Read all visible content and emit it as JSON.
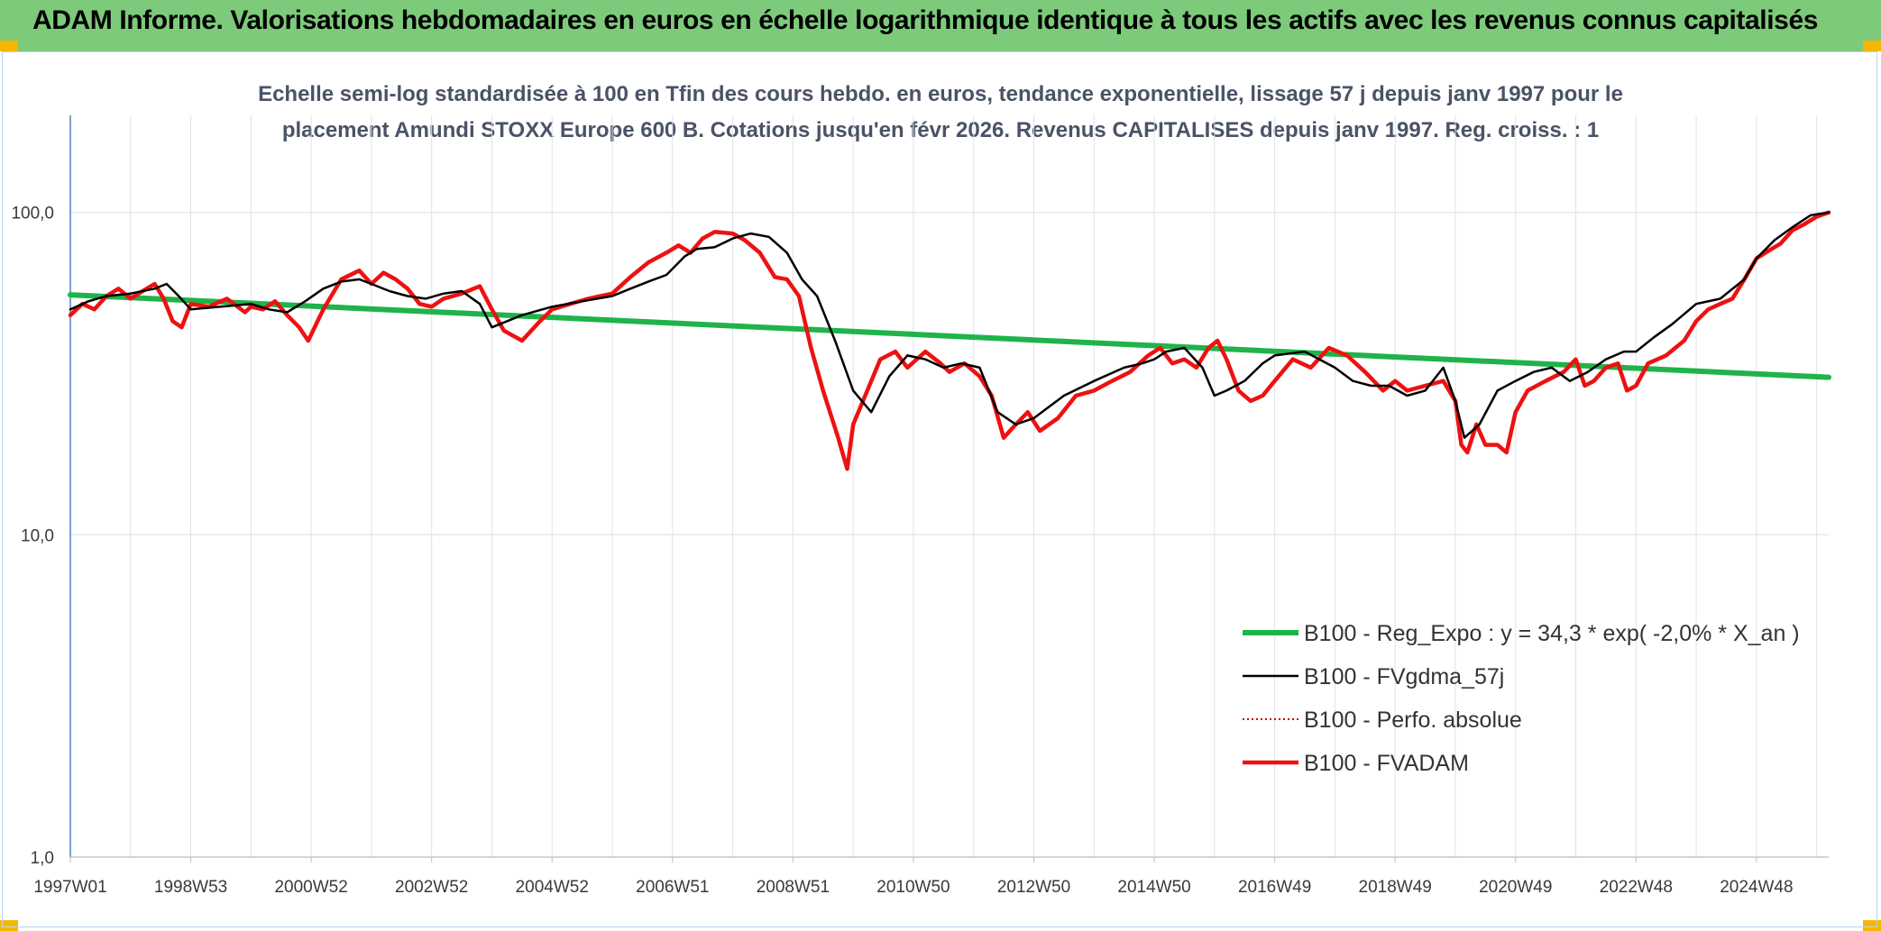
{
  "header": {
    "title": "ADAM Informe. Valorisations hebdomadaires en euros en échelle logarithmique identique à tous les actifs avec les revenus connus capitalisés"
  },
  "colors": {
    "banner": "#7dca7b",
    "corner": "#f5b700",
    "reg_expo": "#1fb34a",
    "fvgdma": "#000000",
    "perfo": "#c00000",
    "fvadam": "#ee1111",
    "grid": "#dde3ea"
  },
  "chart_data": {
    "type": "line",
    "subtitle_line1": "Echelle semi-log standardisée à 100 en Tfin des cours hebdo. en euros, tendance exponentielle, lissage 57 j depuis janv 1997 pour le",
    "subtitle_line2": "placement Amundi STOXX Europe 600 B. Cotations jusqu'en févr 2026. Revenus CAPITALISES depuis janv 1997. Reg. croiss. : 1",
    "y_scale": "log",
    "ylim": [
      1,
      200
    ],
    "xlim": [
      1997.0,
      2026.2
    ],
    "y_ticks": [
      {
        "value": 1,
        "label": "1,0"
      },
      {
        "value": 10,
        "label": "10,0"
      },
      {
        "value": 100,
        "label": "100,0"
      }
    ],
    "x_ticks": [
      {
        "value": 1997.0,
        "label": "1997W01"
      },
      {
        "value": 1999.0,
        "label": "1998W53"
      },
      {
        "value": 2001.0,
        "label": "2000W52"
      },
      {
        "value": 2003.0,
        "label": "2002W52"
      },
      {
        "value": 2005.0,
        "label": "2004W52"
      },
      {
        "value": 2007.0,
        "label": "2006W51"
      },
      {
        "value": 2009.0,
        "label": "2008W51"
      },
      {
        "value": 2011.0,
        "label": "2010W50"
      },
      {
        "value": 2013.0,
        "label": "2012W50"
      },
      {
        "value": 2015.0,
        "label": "2014W50"
      },
      {
        "value": 2017.0,
        "label": "2016W49"
      },
      {
        "value": 2019.0,
        "label": "2018W49"
      },
      {
        "value": 2021.0,
        "label": "2020W49"
      },
      {
        "value": 2023.0,
        "label": "2022W48"
      },
      {
        "value": 2025.0,
        "label": "2024W48"
      }
    ],
    "grid": true,
    "legend_position": "bottom-right",
    "series": [
      {
        "key": "reg_expo",
        "name": "B100 - Reg_Expo : y = 34,3 * exp( -2,0% *  X_an )",
        "style": "solid-thick",
        "x": [
          1997.0,
          2026.2
        ],
        "y": [
          55.5,
          30.8
        ]
      },
      {
        "key": "fvgdma",
        "name": "B100 - FVgdma_57j",
        "style": "solid-thin",
        "x": [
          1997.0,
          1997.3,
          1997.6,
          1998.0,
          1998.4,
          1998.6,
          1998.8,
          1999.0,
          1999.5,
          2000.0,
          2000.3,
          2000.6,
          2000.9,
          2001.2,
          2001.5,
          2001.8,
          2002.0,
          2002.3,
          2002.6,
          2002.9,
          2003.2,
          2003.5,
          2003.8,
          2004.0,
          2004.5,
          2005.0,
          2005.5,
          2006.0,
          2006.3,
          2006.6,
          2006.9,
          2007.2,
          2007.4,
          2007.7,
          2008.0,
          2008.3,
          2008.6,
          2008.9,
          2009.15,
          2009.4,
          2009.7,
          2010.0,
          2010.3,
          2010.6,
          2010.9,
          2011.2,
          2011.5,
          2011.8,
          2012.1,
          2012.4,
          2012.7,
          2013.0,
          2013.5,
          2014.0,
          2014.5,
          2014.8,
          2015.0,
          2015.2,
          2015.5,
          2015.8,
          2016.0,
          2016.2,
          2016.5,
          2016.8,
          2017.0,
          2017.5,
          2018.0,
          2018.3,
          2018.6,
          2018.9,
          2019.2,
          2019.5,
          2019.8,
          2020.0,
          2020.15,
          2020.4,
          2020.7,
          2021.0,
          2021.3,
          2021.6,
          2021.9,
          2022.2,
          2022.5,
          2022.8,
          2023.0,
          2023.3,
          2023.6,
          2024.0,
          2024.4,
          2024.8,
          2025.0,
          2025.3,
          2025.6,
          2025.9,
          2026.2
        ],
        "y": [
          50,
          53,
          55,
          56,
          58,
          60,
          55,
          50,
          51,
          52,
          50,
          49,
          53,
          58,
          61,
          62,
          60,
          57,
          55,
          54,
          56,
          57,
          52,
          44,
          48,
          51,
          53,
          55,
          58,
          61,
          64,
          73,
          77,
          78,
          83,
          86,
          84,
          75,
          62,
          55,
          40,
          28,
          24,
          31,
          36,
          35,
          33,
          34,
          33,
          24,
          22,
          23,
          27,
          30,
          33,
          34,
          35,
          37,
          38,
          33,
          27,
          28,
          30,
          34,
          36,
          37,
          33,
          30,
          29,
          29,
          27,
          28,
          33,
          26,
          20,
          22,
          28,
          30,
          32,
          33,
          30,
          32,
          35,
          37,
          37,
          41,
          45,
          52,
          54,
          62,
          72,
          82,
          90,
          98,
          100
        ]
      },
      {
        "key": "perfo",
        "name": "B100 - Perfo. absolue",
        "style": "dotted",
        "x": [],
        "y": []
      },
      {
        "key": "fvadam",
        "name": "B100 - FVADAM",
        "style": "solid-thick",
        "x": [
          1997.0,
          1997.2,
          1997.4,
          1997.6,
          1997.8,
          1998.0,
          1998.2,
          1998.4,
          1998.55,
          1998.7,
          1998.85,
          1999.0,
          1999.3,
          1999.6,
          1999.9,
          2000.0,
          2000.2,
          2000.4,
          2000.6,
          2000.8,
          2000.95,
          2001.2,
          2001.5,
          2001.8,
          2002.0,
          2002.2,
          2002.4,
          2002.6,
          2002.8,
          2003.0,
          2003.2,
          2003.5,
          2003.8,
          2004.0,
          2004.2,
          2004.5,
          2004.8,
          2005.0,
          2005.3,
          2005.6,
          2006.0,
          2006.3,
          2006.6,
          2006.9,
          2007.1,
          2007.3,
          2007.5,
          2007.7,
          2008.0,
          2008.2,
          2008.45,
          2008.7,
          2008.9,
          2009.1,
          2009.3,
          2009.5,
          2009.75,
          2009.9,
          2010.0,
          2010.2,
          2010.45,
          2010.7,
          2010.9,
          2011.2,
          2011.45,
          2011.6,
          2011.85,
          2012.1,
          2012.3,
          2012.5,
          2012.7,
          2012.9,
          2013.1,
          2013.4,
          2013.7,
          2014.0,
          2014.3,
          2014.6,
          2014.9,
          2015.1,
          2015.3,
          2015.5,
          2015.7,
          2015.9,
          2016.05,
          2016.2,
          2016.4,
          2016.6,
          2016.8,
          2017.0,
          2017.3,
          2017.6,
          2017.9,
          2018.2,
          2018.5,
          2018.8,
          2019.0,
          2019.2,
          2019.5,
          2019.8,
          2020.0,
          2020.1,
          2020.2,
          2020.35,
          2020.5,
          2020.7,
          2020.85,
          2021.0,
          2021.2,
          2021.5,
          2021.8,
          2022.0,
          2022.15,
          2022.3,
          2022.5,
          2022.7,
          2022.85,
          2023.0,
          2023.2,
          2023.5,
          2023.8,
          2024.0,
          2024.2,
          2024.4,
          2024.6,
          2024.8,
          2025.0,
          2025.2,
          2025.4,
          2025.6,
          2025.8,
          2026.0,
          2026.2
        ],
        "y": [
          48,
          52,
          50,
          55,
          58,
          54,
          57,
          60,
          54,
          46,
          44,
          52,
          51,
          54,
          49,
          51,
          50,
          53,
          48,
          44,
          40,
          50,
          62,
          66,
          60,
          65,
          62,
          58,
          52,
          51,
          54,
          56,
          59,
          50,
          43,
          40,
          46,
          50,
          52,
          54,
          56,
          63,
          70,
          75,
          79,
          75,
          83,
          87,
          86,
          82,
          75,
          63,
          62,
          55,
          38,
          28,
          20,
          16,
          22,
          27,
          35,
          37,
          33,
          37,
          34,
          32,
          34,
          31,
          27,
          20,
          22,
          24,
          21,
          23,
          27,
          28,
          30,
          32,
          36,
          38,
          34,
          35,
          33,
          38,
          40,
          35,
          28,
          26,
          27,
          30,
          35,
          33,
          38,
          36,
          32,
          28,
          30,
          28,
          29,
          30,
          26,
          19,
          18,
          22,
          19,
          19,
          18,
          24,
          28,
          30,
          32,
          35,
          29,
          30,
          33,
          34,
          28,
          29,
          34,
          36,
          40,
          46,
          50,
          52,
          54,
          62,
          72,
          76,
          80,
          88,
          92,
          97,
          100
        ]
      }
    ]
  }
}
